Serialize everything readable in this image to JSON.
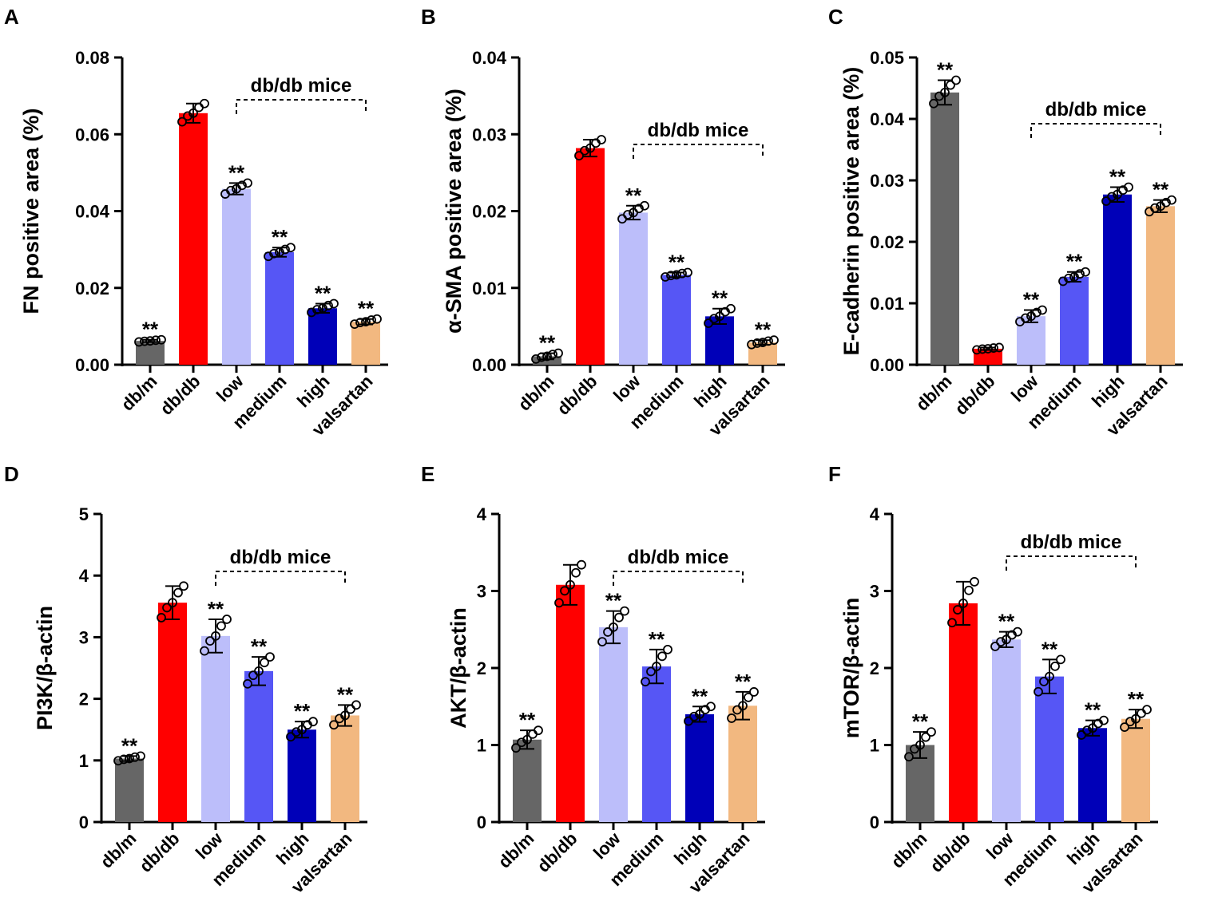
{
  "chart_data": [
    {
      "panel": "A",
      "type": "bar",
      "ylabel": "FN positive area (%)",
      "ylim": [
        0,
        0.08
      ],
      "yticks": [
        "0.00",
        "0.02",
        "0.04",
        "0.06",
        "0.08"
      ],
      "ytick_values": [
        0,
        0.02,
        0.04,
        0.06,
        0.08
      ],
      "categories": [
        "db/m",
        "db/db",
        "low",
        "medium",
        "high",
        "valsartan"
      ],
      "values": [
        0.0062,
        0.0655,
        0.0458,
        0.0293,
        0.0147,
        0.0112
      ],
      "errors": [
        0.0003,
        0.0025,
        0.0015,
        0.0012,
        0.0012,
        0.0007
      ],
      "significance": [
        "**",
        "",
        "**",
        "**",
        "**",
        "**"
      ],
      "bracket_label": "db/db mice"
    },
    {
      "panel": "B",
      "type": "bar",
      "ylabel": "α-SMA positive area (%)",
      "ylim": [
        0,
        0.04
      ],
      "yticks": [
        "0.00",
        "0.01",
        "0.02",
        "0.03",
        "0.04"
      ],
      "ytick_values": [
        0,
        0.01,
        0.02,
        0.03,
        0.04
      ],
      "categories": [
        "db/m",
        "db/db",
        "low",
        "medium",
        "high",
        "valsartan"
      ],
      "values": [
        0.0011,
        0.0282,
        0.0198,
        0.0117,
        0.0063,
        0.0029
      ],
      "errors": [
        0.0004,
        0.0011,
        0.0009,
        0.0003,
        0.001,
        0.0003
      ],
      "significance": [
        "**",
        "",
        "**",
        "**",
        "**",
        "**"
      ],
      "bracket_label": "db/db mice"
    },
    {
      "panel": "C",
      "type": "bar",
      "ylabel": "E-cadherin positive area (%)",
      "ylim": [
        0,
        0.05
      ],
      "yticks": [
        "0.00",
        "0.01",
        "0.02",
        "0.03",
        "0.04",
        "0.05"
      ],
      "ytick_values": [
        0,
        0.01,
        0.02,
        0.03,
        0.04,
        0.05
      ],
      "categories": [
        "db/m",
        "db/db",
        "low",
        "medium",
        "high",
        "valsartan"
      ],
      "values": [
        0.0443,
        0.0026,
        0.0079,
        0.0143,
        0.0277,
        0.0258
      ],
      "errors": [
        0.002,
        0.0002,
        0.001,
        0.0008,
        0.0012,
        0.001
      ],
      "significance": [
        "**",
        "",
        "**",
        "**",
        "**",
        "**"
      ],
      "bracket_label": "db/db mice"
    },
    {
      "panel": "D",
      "type": "bar",
      "ylabel": "PI3K/β-actin",
      "ylim": [
        0,
        5
      ],
      "yticks": [
        "0",
        "1",
        "2",
        "3",
        "4",
        "5"
      ],
      "ytick_values": [
        0,
        1,
        2,
        3,
        4,
        5
      ],
      "categories": [
        "db/m",
        "db/db",
        "low",
        "medium",
        "high",
        "valsartan"
      ],
      "values": [
        1.03,
        3.56,
        3.02,
        2.45,
        1.5,
        1.73
      ],
      "errors": [
        0.04,
        0.27,
        0.27,
        0.23,
        0.13,
        0.17
      ],
      "significance": [
        "**",
        "",
        "**",
        "**",
        "**",
        "**"
      ],
      "bracket_label": "db/db mice"
    },
    {
      "panel": "E",
      "type": "bar",
      "ylabel": "AKT/β-actin",
      "ylim": [
        0,
        4
      ],
      "yticks": [
        "0",
        "1",
        "2",
        "3",
        "4"
      ],
      "ytick_values": [
        0,
        1,
        2,
        3,
        4
      ],
      "categories": [
        "db/m",
        "db/db",
        "low",
        "medium",
        "high",
        "valsartan"
      ],
      "values": [
        1.07,
        3.08,
        2.53,
        2.02,
        1.4,
        1.51
      ],
      "errors": [
        0.12,
        0.26,
        0.21,
        0.22,
        0.1,
        0.18
      ],
      "significance": [
        "**",
        "",
        "**",
        "**",
        "**",
        "**"
      ],
      "bracket_label": "db/db mice"
    },
    {
      "panel": "F",
      "type": "bar",
      "ylabel": "mTOR/β-actin",
      "ylim": [
        0,
        4
      ],
      "yticks": [
        "0",
        "1",
        "2",
        "3",
        "4"
      ],
      "ytick_values": [
        0,
        1,
        2,
        3,
        4
      ],
      "categories": [
        "db/m",
        "db/db",
        "low",
        "medium",
        "high",
        "valsartan"
      ],
      "values": [
        1.0,
        2.84,
        2.37,
        1.89,
        1.22,
        1.34
      ],
      "errors": [
        0.17,
        0.28,
        0.1,
        0.22,
        0.1,
        0.12
      ],
      "significance": [
        "**",
        "",
        "**",
        "**",
        "**",
        "**"
      ],
      "bracket_label": "db/db mice"
    }
  ],
  "colors": [
    "#666666",
    "#ff0000",
    "#bcbefa",
    "#5656f5",
    "#0000b8",
    "#f2b880"
  ]
}
